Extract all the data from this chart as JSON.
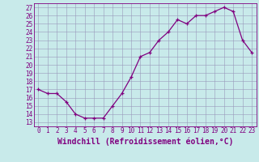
{
  "hours": [
    0,
    1,
    2,
    3,
    4,
    5,
    6,
    7,
    8,
    9,
    10,
    11,
    12,
    13,
    14,
    15,
    16,
    17,
    18,
    19,
    20,
    21,
    22,
    23
  ],
  "temps": [
    17,
    16.5,
    16.5,
    15.5,
    14,
    13.5,
    13.5,
    13.5,
    15,
    16.5,
    18.5,
    21,
    21.5,
    23,
    24,
    25.5,
    25,
    26,
    26,
    26.5,
    27,
    26.5,
    23,
    21.5
  ],
  "line_color": "#800080",
  "marker": "+",
  "bg_color": "#c8eaea",
  "grid_color": "#9999bb",
  "xlabel": "Windchill (Refroidissement éolien,°C)",
  "ylabel_ticks": [
    13,
    14,
    15,
    16,
    17,
    18,
    19,
    20,
    21,
    22,
    23,
    24,
    25,
    26,
    27
  ],
  "ylim": [
    12.5,
    27.5
  ],
  "xlim": [
    -0.5,
    23.5
  ],
  "tick_fontsize": 5.5,
  "xlabel_fontsize": 7,
  "marker_size": 3
}
